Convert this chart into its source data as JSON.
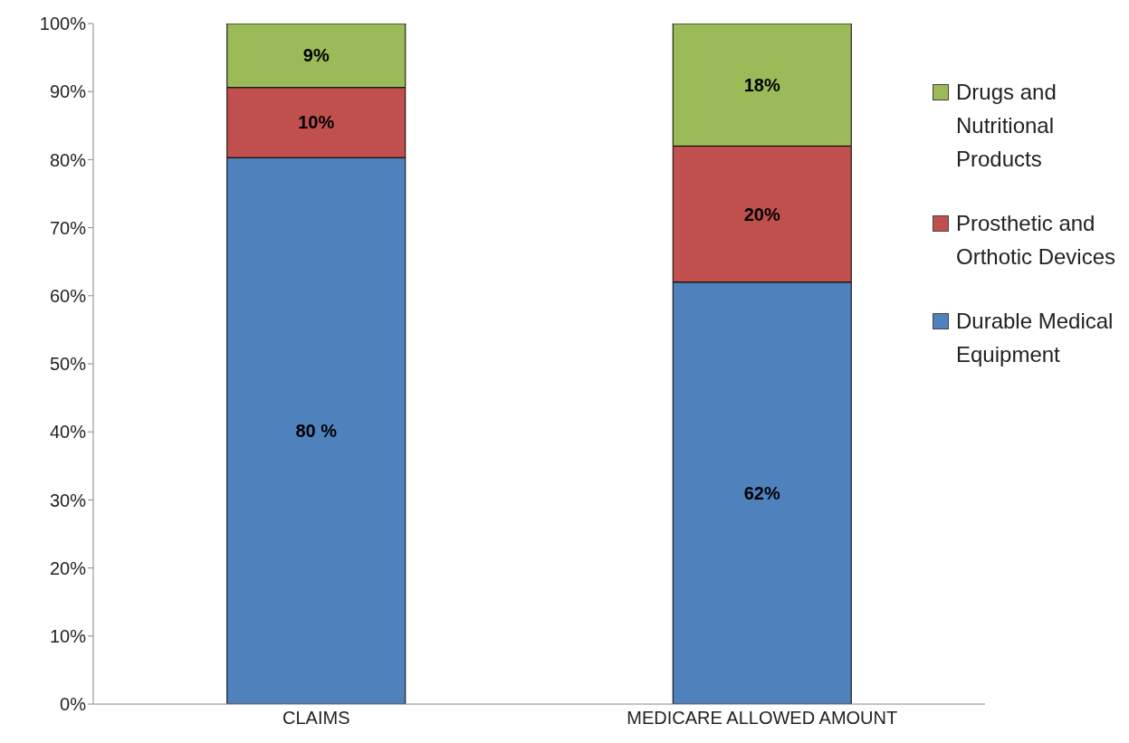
{
  "chart_data": {
    "type": "bar",
    "stacked": true,
    "categories": [
      "CLAIMS",
      "MEDICARE ALLOWED AMOUNT"
    ],
    "series": [
      {
        "name": "Durable Medical Equipment",
        "color": "#4f81bd",
        "values": [
          80.3,
          62
        ],
        "value_labels": [
          "80 %",
          "62%"
        ]
      },
      {
        "name": "Prosthetic and Orthotic Devices",
        "color": "#c0504d",
        "values": [
          10.3,
          20
        ],
        "value_labels": [
          "10%",
          "20%"
        ]
      },
      {
        "name": "Drugs and Nutritional Products",
        "color": "#9bbb59",
        "values": [
          9.4,
          18
        ],
        "value_labels": [
          "9%",
          "18%"
        ]
      }
    ],
    "ylim": [
      0,
      100
    ],
    "yticks": [
      {
        "value": 0,
        "label": "0%"
      },
      {
        "value": 10,
        "label": "10%"
      },
      {
        "value": 20,
        "label": "20%"
      },
      {
        "value": 30,
        "label": "30%"
      },
      {
        "value": 40,
        "label": "40%"
      },
      {
        "value": 50,
        "label": "50%"
      },
      {
        "value": 60,
        "label": "60%"
      },
      {
        "value": 70,
        "label": "70%"
      },
      {
        "value": 80,
        "label": "80%"
      },
      {
        "value": 90,
        "label": "90%"
      },
      {
        "value": 100,
        "label": "100%"
      }
    ],
    "grid": false,
    "legend": "right"
  }
}
